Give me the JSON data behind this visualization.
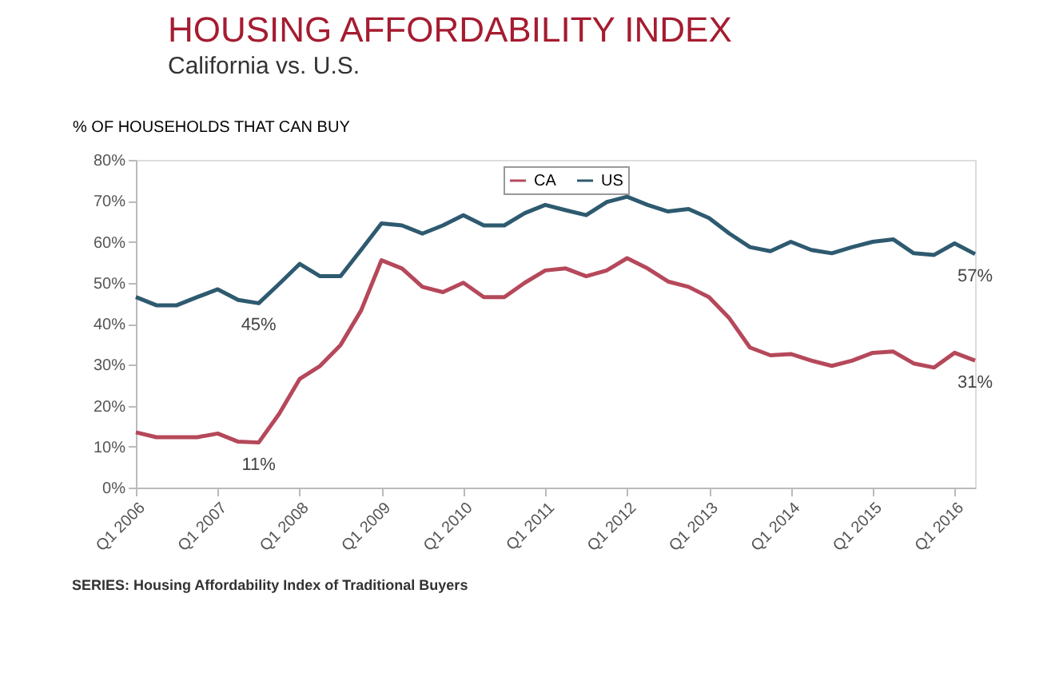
{
  "chart_data": {
    "type": "line",
    "title": "HOUSING AFFORDABILITY INDEX",
    "subtitle": "California vs. U.S.",
    "ylabel": "% OF HOUSEHOLDS THAT CAN BUY",
    "categories": [
      "Q1 2006",
      null,
      null,
      null,
      "Q1 2007",
      null,
      null,
      null,
      "Q1 2008",
      null,
      null,
      null,
      "Q1 2009",
      null,
      null,
      null,
      "Q1 2010",
      null,
      null,
      null,
      "Q1 2011",
      null,
      null,
      null,
      "Q1 2012",
      null,
      null,
      null,
      "Q1 2013",
      null,
      null,
      null,
      "Q1 2014",
      null,
      null,
      null,
      "Q1 2015",
      null,
      null,
      null,
      "Q1 2016",
      null
    ],
    "series": [
      {
        "name": "CA",
        "color": "#b5485a",
        "values": [
          13.5,
          12.3,
          12.3,
          12.3,
          13.2,
          11.2,
          11,
          18,
          26.5,
          29.7,
          34.8,
          43.2,
          55.5,
          53.5,
          49,
          47.7,
          50,
          46.5,
          46.5,
          50,
          53,
          53.5,
          51.6,
          53,
          56,
          53.5,
          50.3,
          49,
          46.5,
          41.3,
          34.2,
          32.3,
          32.6,
          31,
          29.7,
          31,
          32.9,
          33.2,
          30.3,
          29.3,
          32.9,
          31
        ],
        "value_labels": [
          null,
          null,
          null,
          null,
          null,
          null,
          "11%",
          null,
          null,
          null,
          null,
          null,
          null,
          null,
          null,
          null,
          null,
          null,
          null,
          null,
          null,
          null,
          null,
          null,
          null,
          null,
          null,
          null,
          null,
          null,
          null,
          null,
          null,
          null,
          null,
          null,
          null,
          null,
          null,
          null,
          null,
          "31%"
        ]
      },
      {
        "name": "US",
        "color": "#2e5a70",
        "values": [
          46.5,
          44.5,
          44.5,
          46.5,
          48.4,
          45.8,
          45,
          49.7,
          54.6,
          51.6,
          51.6,
          58,
          64.5,
          64,
          62,
          64,
          66.5,
          64,
          64,
          67,
          69,
          67.7,
          66.5,
          69.7,
          71,
          69,
          67.4,
          68,
          65.8,
          62,
          58.7,
          57.7,
          60,
          58,
          57.2,
          58.7,
          60,
          60.6,
          57.2,
          56.8,
          59.6,
          57
        ],
        "value_labels": [
          null,
          null,
          null,
          null,
          null,
          null,
          "45%",
          null,
          null,
          null,
          null,
          null,
          null,
          null,
          null,
          null,
          null,
          null,
          null,
          null,
          null,
          null,
          null,
          null,
          null,
          null,
          null,
          null,
          null,
          null,
          null,
          null,
          null,
          null,
          null,
          null,
          null,
          null,
          null,
          null,
          null,
          "57%"
        ]
      }
    ],
    "ylim": [
      0,
      80
    ],
    "yticks": [
      {
        "value": 0,
        "label": "0%"
      },
      {
        "value": 10,
        "label": "10%"
      },
      {
        "value": 20,
        "label": "20%"
      },
      {
        "value": 30,
        "label": "30%"
      },
      {
        "value": 40,
        "label": "40%"
      },
      {
        "value": 50,
        "label": "50%"
      },
      {
        "value": 60,
        "label": "60%"
      },
      {
        "value": 70,
        "label": "70%"
      },
      {
        "value": 80,
        "label": "80%"
      }
    ],
    "grid": false,
    "legend": "top",
    "marker": "none",
    "line_style": "solid",
    "annotations": [
      "SERIES: Housing Affordability Index of Traditional Buyers"
    ]
  }
}
